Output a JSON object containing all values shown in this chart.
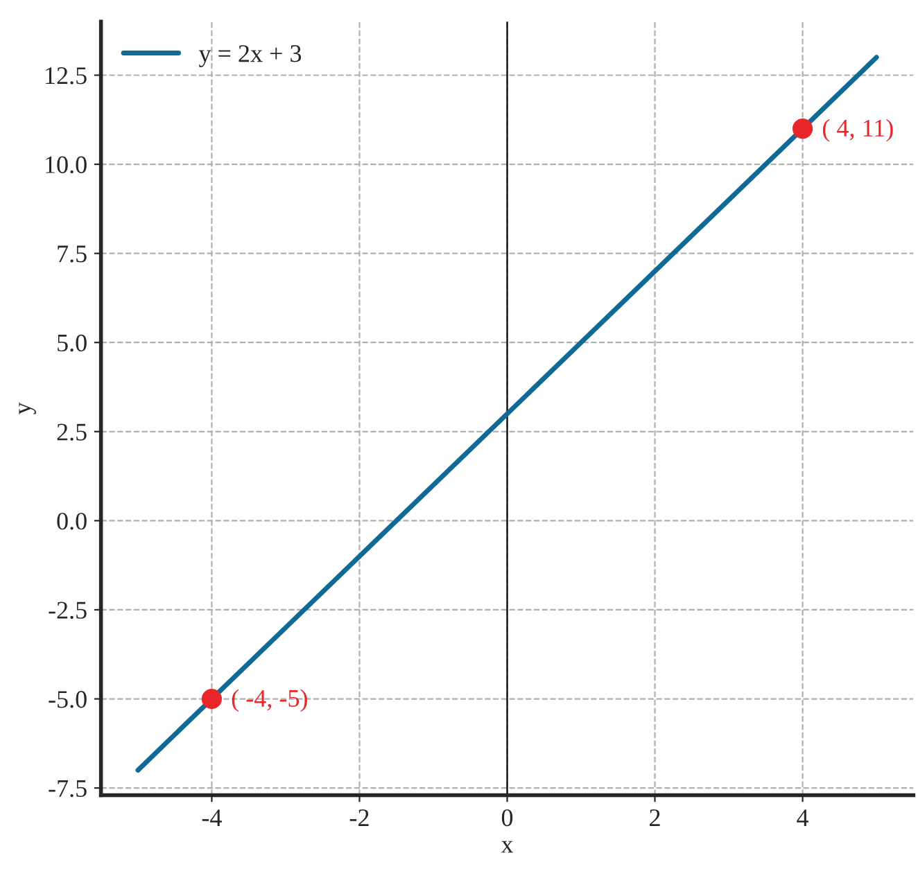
{
  "chart_data": {
    "type": "line",
    "xlabel": "x",
    "ylabel": "y",
    "series": [
      {
        "name": "y = 2x + 3",
        "color": "#106a96",
        "x": [
          -5,
          5
        ],
        "values": [
          -7,
          13
        ]
      },
      {
        "type": "scatter",
        "color": "#e8262a",
        "x": [
          -4,
          4
        ],
        "values": [
          -5,
          11
        ],
        "marker": "circle"
      }
    ],
    "annotations": [
      {
        "text": "( -4, -5)",
        "x": -4,
        "y": -5
      },
      {
        "text": "( 4, 11)",
        "x": 4,
        "y": 11
      }
    ],
    "ref_lines": [
      {
        "axis": "x",
        "value": 0,
        "color": "#000000"
      }
    ],
    "xlim": [
      -5.5,
      5.5
    ],
    "xticks": [
      -4,
      -2,
      0,
      2,
      4
    ],
    "ylim": [
      -7.7,
      14
    ],
    "yticks": [
      {
        "value": -7.5,
        "label": "-7.5"
      },
      {
        "value": -5,
        "label": "-5.0"
      },
      {
        "value": -2.5,
        "label": "-2.5"
      },
      {
        "value": 0,
        "label": "0.0"
      },
      {
        "value": 2.5,
        "label": "2.5"
      },
      {
        "value": 5,
        "label": "5.0"
      },
      {
        "value": 7.5,
        "label": "7.5"
      },
      {
        "value": 10,
        "label": "10.0"
      },
      {
        "value": 12.5,
        "label": "12.5"
      }
    ],
    "grid": true,
    "legend": "top left"
  }
}
